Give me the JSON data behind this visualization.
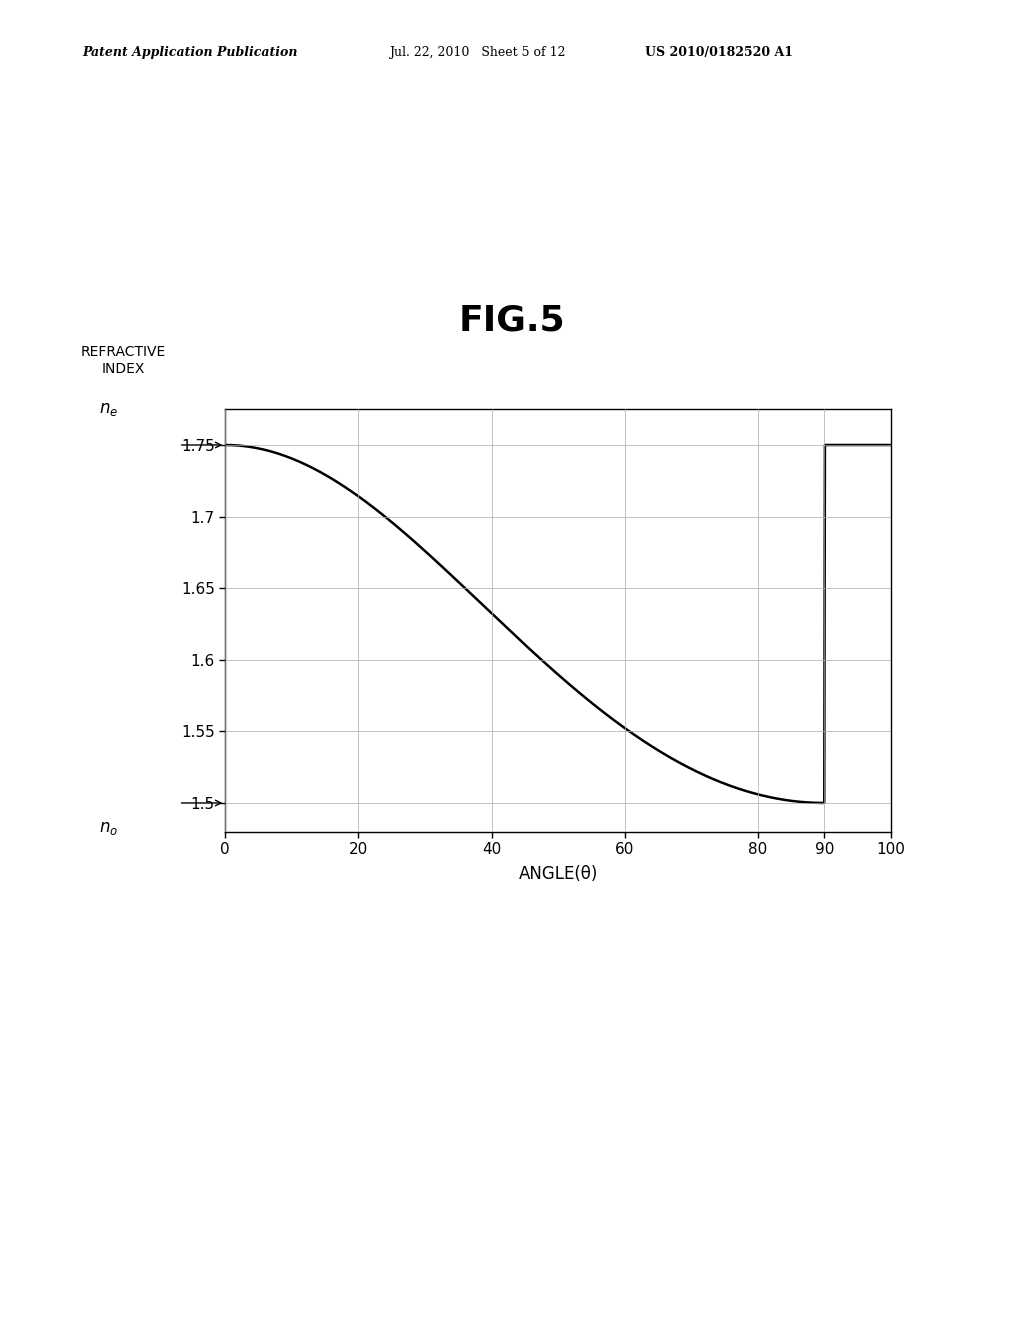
{
  "fig_label": "FIG.5",
  "header_left": "Patent Application Publication",
  "header_mid": "Jul. 22, 2010   Sheet 5 of 12",
  "header_right": "US 2010/0182520 A1",
  "ylabel_line1": "REFRACTIVE",
  "ylabel_line2": "INDEX",
  "xlabel": "ANGLE(θ)",
  "ne_label": "nₑ",
  "no_label": "nₒ",
  "ne_value": 1.75,
  "no_value": 1.5,
  "xlim": [
    0,
    100
  ],
  "ylim": [
    1.48,
    1.78
  ],
  "xticks": [
    0,
    20,
    40,
    60,
    80,
    90,
    100
  ],
  "yticks": [
    1.5,
    1.55,
    1.6,
    1.65,
    1.7,
    1.75
  ],
  "background_color": "#ffffff",
  "line_color": "#000000",
  "grid_color": "#aaaaaa",
  "axis_color": "#000000"
}
